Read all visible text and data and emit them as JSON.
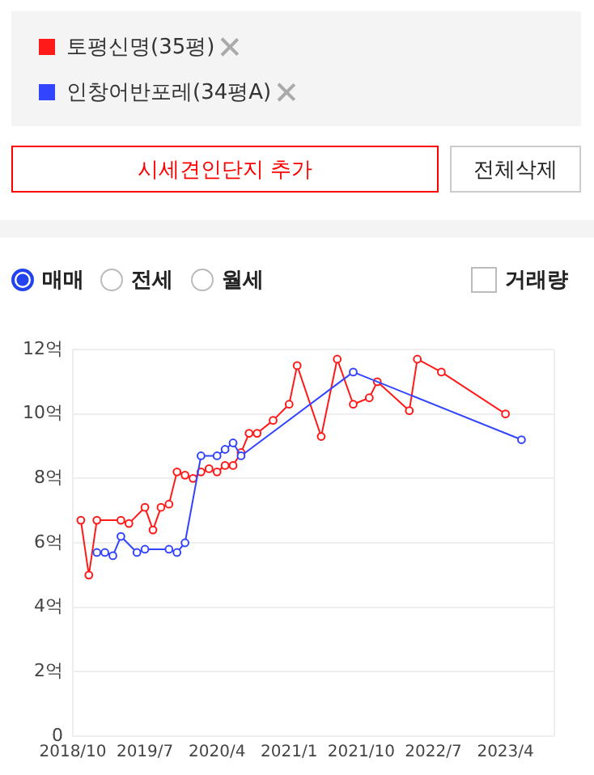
{
  "chart_data": {
    "type": "line",
    "legend": "top",
    "marker": "circle",
    "line_style": "solid",
    "grid": "y",
    "ylim": [
      0,
      12
    ],
    "yticks": [
      0,
      {
        "value": 2,
        "label": "2억"
      },
      {
        "value": 4,
        "label": "4억"
      },
      {
        "value": 6,
        "label": "6억"
      },
      {
        "value": 8,
        "label": "8억"
      },
      {
        "value": 10,
        "label": "10억"
      },
      {
        "value": 12,
        "label": "12억"
      }
    ],
    "xlim": [
      "2018-10",
      "2023-10"
    ],
    "xticks": [
      {
        "value": "2018-10",
        "label": "2018/10"
      },
      {
        "value": "2019-07",
        "label": "2019/7"
      },
      {
        "value": "2020-04",
        "label": "2020/4"
      },
      {
        "value": "2021-01",
        "label": "2021/1"
      },
      {
        "value": "2021-10",
        "label": "2021/10"
      },
      {
        "value": "2022-07",
        "label": "2022/7"
      },
      {
        "value": "2023-04",
        "label": "2023/4"
      }
    ],
    "series": [
      {
        "name": "토평신명(35평)",
        "color": "#ff1a1a",
        "x": [
          "2018-11",
          "2018-12",
          "2019-01",
          "2019-04",
          "2019-05",
          "2019-07",
          "2019-08",
          "2019-09",
          "2019-10",
          "2019-11",
          "2019-12",
          "2020-01",
          "2020-02",
          "2020-03",
          "2020-04",
          "2020-05",
          "2020-06",
          "2020-07",
          "2020-08",
          "2020-09",
          "2020-11",
          "2021-01",
          "2021-02",
          "2021-05",
          "2021-07",
          "2021-09",
          "2021-11",
          "2021-12",
          "2022-04",
          "2022-05",
          "2022-08",
          "2023-04"
        ],
        "values": [
          6.7,
          5.0,
          6.7,
          6.7,
          6.6,
          7.1,
          6.4,
          7.1,
          7.2,
          8.2,
          8.1,
          8.0,
          8.2,
          8.3,
          8.2,
          8.4,
          8.4,
          8.8,
          9.4,
          9.4,
          9.8,
          10.3,
          11.5,
          9.3,
          11.7,
          10.3,
          10.5,
          11.0,
          10.1,
          11.7,
          11.3,
          10.0
        ]
      },
      {
        "name": "인창어반포레(34평A)",
        "color": "#3344ff",
        "x": [
          "2019-01",
          "2019-02",
          "2019-03",
          "2019-04",
          "2019-06",
          "2019-07",
          "2019-10",
          "2019-11",
          "2019-12",
          "2020-02",
          "2020-04",
          "2020-05",
          "2020-06",
          "2020-07",
          "2021-09",
          "2023-06"
        ],
        "values": [
          5.7,
          5.7,
          5.6,
          6.2,
          5.7,
          5.8,
          5.8,
          5.7,
          6.0,
          8.7,
          8.7,
          8.9,
          9.1,
          8.7,
          11.3,
          9.2
        ]
      }
    ],
    "annotations": [
      "시세견인단지 추가",
      "전체삭제",
      "매매",
      "전세",
      "월세",
      "거래량"
    ]
  }
}
